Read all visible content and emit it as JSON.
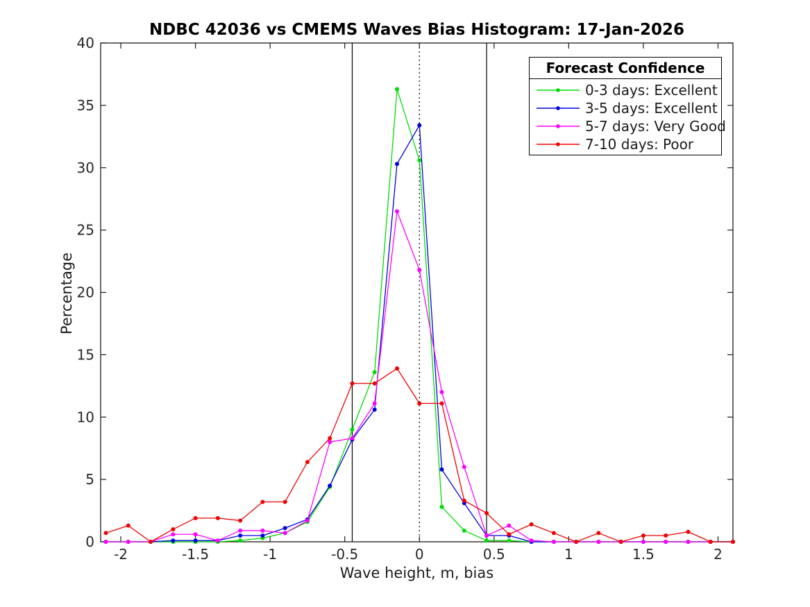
{
  "figure": {
    "background": "#ffffff",
    "axis_color": "#1a1a1a",
    "tick_label_color": "#262626"
  },
  "chart_data": {
    "type": "line",
    "title": "NDBC 42036 vs CMEMS Waves Bias Histogram: 17-Jan-2026",
    "xlabel": "Wave height, m, bias",
    "ylabel": "Percentage",
    "xlim": [
      -2.135,
      2.1
    ],
    "ylim": [
      0,
      40
    ],
    "xticks": [
      -2,
      -1.5,
      -1,
      -0.5,
      0,
      0.5,
      1,
      1.5,
      2
    ],
    "xtick_labels": [
      "-2",
      "-1.5",
      "-1",
      "-0.5",
      "0",
      "0.5",
      "1",
      "1.5",
      "2"
    ],
    "yticks": [
      0,
      5,
      10,
      15,
      20,
      25,
      30,
      35,
      40
    ],
    "ytick_labels": [
      "0",
      "5",
      "10",
      "15",
      "20",
      "25",
      "30",
      "35",
      "40"
    ],
    "grid": false,
    "marker": "dot",
    "legend": {
      "title": "Forecast Confidence",
      "position": "top-right"
    },
    "x": [
      -2.1,
      -1.95,
      -1.8,
      -1.65,
      -1.5,
      -1.35,
      -1.2,
      -1.05,
      -0.9,
      -0.75,
      -0.6,
      -0.45,
      -0.3,
      -0.15,
      0,
      0.15,
      0.3,
      0.45,
      0.6,
      0.75,
      0.9,
      1.05,
      1.2,
      1.35,
      1.5,
      1.65,
      1.8,
      1.95,
      2.1
    ],
    "series": [
      {
        "name": "0-3 days: Excellent",
        "color": "#00dc00",
        "values": [
          0,
          0,
          0,
          0,
          0,
          0,
          0.1,
          0.3,
          0.7,
          1.6,
          4.4,
          9.0,
          13.6,
          36.3,
          30.6,
          2.8,
          0.9,
          0.1,
          0.1,
          0,
          0,
          0,
          0,
          0,
          0,
          0,
          0,
          0,
          0
        ]
      },
      {
        "name": "3-5 days: Excellent",
        "color": "#0000e0",
        "values": [
          0,
          0,
          0,
          0.1,
          0.1,
          0.1,
          0.5,
          0.5,
          1.1,
          1.8,
          4.5,
          8.2,
          10.6,
          30.3,
          33.4,
          5.8,
          3.1,
          0.5,
          0.5,
          0,
          0,
          0,
          0,
          0,
          0,
          0,
          0,
          0,
          0
        ]
      },
      {
        "name": "5-7 days: Very Good",
        "color": "#ff00ff",
        "values": [
          0,
          0,
          0,
          0.6,
          0.6,
          0.1,
          0.9,
          0.9,
          0.7,
          1.7,
          8.0,
          8.3,
          11.1,
          26.5,
          21.8,
          12.0,
          6.0,
          0.5,
          1.3,
          0.1,
          0,
          0,
          0,
          0,
          0,
          0,
          0,
          0,
          0
        ]
      },
      {
        "name": "7-10 days: Poor",
        "color": "#f00000",
        "values": [
          0.7,
          1.3,
          0,
          1.0,
          1.9,
          1.9,
          1.7,
          3.2,
          3.2,
          6.4,
          8.3,
          12.7,
          12.7,
          13.9,
          11.1,
          11.1,
          3.3,
          2.3,
          0.6,
          1.4,
          0.7,
          0,
          0.7,
          0,
          0.5,
          0.5,
          0.8,
          0,
          0
        ]
      }
    ],
    "reference_lines": [
      {
        "x": -0.45,
        "style": "solid",
        "color": "#000000"
      },
      {
        "x": 0,
        "style": "dotted",
        "color": "#000000"
      },
      {
        "x": 0.45,
        "style": "solid",
        "color": "#000000"
      }
    ]
  }
}
